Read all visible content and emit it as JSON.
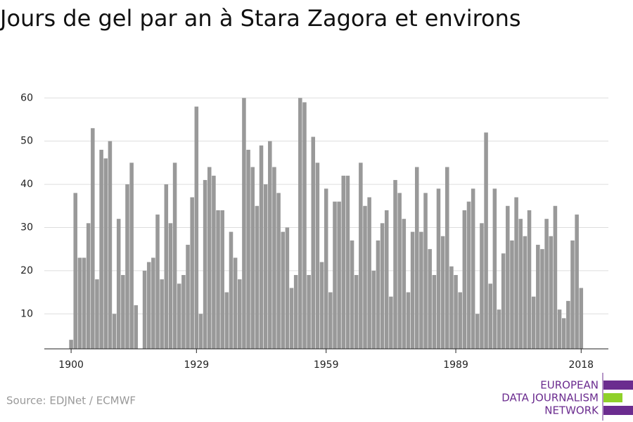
{
  "chart_data": {
    "type": "bar",
    "title": "Jours de gel par an à Stara Zagora et environs",
    "source": "Source: EDJNet / ECMWF",
    "logo": [
      "EUROPEAN",
      "DATA JOURNALISM",
      "NETWORK"
    ],
    "color": "#999999",
    "grid": true,
    "x": [
      1900,
      1901,
      1902,
      1903,
      1904,
      1905,
      1906,
      1907,
      1908,
      1909,
      1910,
      1911,
      1912,
      1913,
      1914,
      1915,
      1916,
      1917,
      1918,
      1919,
      1920,
      1921,
      1922,
      1923,
      1924,
      1925,
      1926,
      1927,
      1928,
      1929,
      1930,
      1931,
      1932,
      1933,
      1934,
      1935,
      1936,
      1937,
      1938,
      1939,
      1940,
      1941,
      1942,
      1943,
      1944,
      1945,
      1946,
      1947,
      1948,
      1949,
      1950,
      1951,
      1952,
      1953,
      1954,
      1955,
      1956,
      1957,
      1958,
      1959,
      1960,
      1961,
      1962,
      1963,
      1964,
      1965,
      1966,
      1967,
      1968,
      1969,
      1970,
      1971,
      1972,
      1973,
      1974,
      1975,
      1976,
      1977,
      1978,
      1979,
      1980,
      1981,
      1982,
      1983,
      1984,
      1985,
      1986,
      1987,
      1988,
      1989,
      1990,
      1991,
      1992,
      1993,
      1994,
      1995,
      1996,
      1997,
      1998,
      1999,
      2000,
      2001,
      2002,
      2003,
      2004,
      2005,
      2006,
      2007,
      2008,
      2009,
      2010,
      2011,
      2012,
      2013,
      2014,
      2015,
      2016,
      2017,
      2018
    ],
    "values": [
      4,
      38,
      23,
      23,
      31,
      53,
      18,
      48,
      46,
      50,
      10,
      32,
      19,
      40,
      45,
      12,
      null,
      20,
      22,
      23,
      33,
      18,
      40,
      31,
      45,
      17,
      19,
      26,
      37,
      58,
      10,
      41,
      44,
      42,
      34,
      34,
      15,
      29,
      23,
      18,
      60,
      48,
      44,
      35,
      49,
      40,
      50,
      44,
      38,
      29,
      30,
      16,
      19,
      60,
      59,
      19,
      51,
      45,
      22,
      39,
      15,
      36,
      36,
      42,
      42,
      27,
      19,
      45,
      35,
      37,
      20,
      27,
      31,
      34,
      14,
      41,
      38,
      32,
      15,
      29,
      44,
      29,
      38,
      25,
      19,
      39,
      28,
      44,
      21,
      19,
      15,
      34,
      36,
      39,
      10,
      31,
      52,
      17,
      39,
      11,
      24,
      35,
      27,
      37,
      32,
      28,
      34,
      14,
      26,
      25,
      32,
      28,
      35,
      11,
      9,
      13,
      27,
      33,
      16
    ],
    "xlim": [
      1893.8,
      2024.3
    ],
    "xticks": [
      1900,
      1929,
      1959,
      1989,
      2018
    ],
    "ylim": [
      1.9,
      62
    ],
    "yticks": [
      10,
      20,
      30,
      40,
      50,
      60
    ]
  }
}
